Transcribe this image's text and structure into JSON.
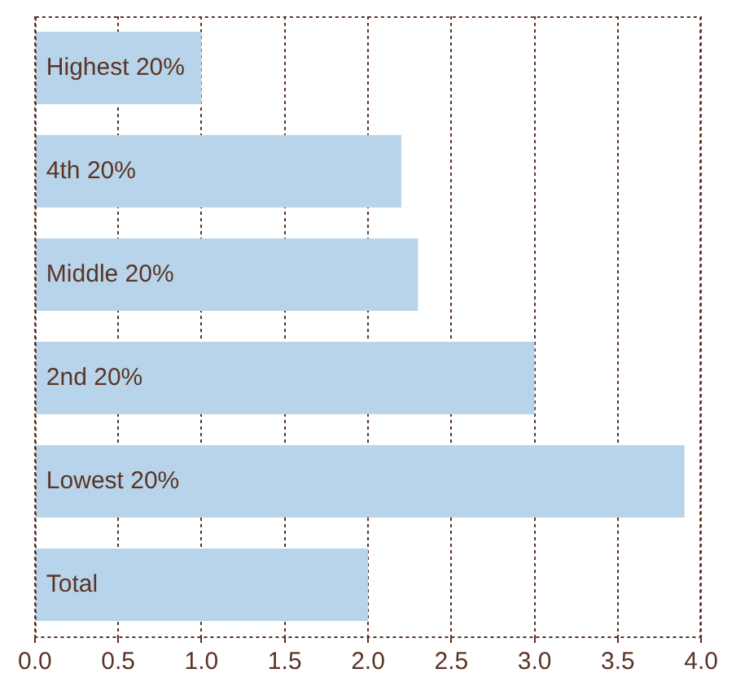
{
  "chart_data": {
    "type": "bar",
    "orientation": "horizontal",
    "categories": [
      "Highest 20%",
      "4th 20%",
      "Middle 20%",
      "2nd 20%",
      "Lowest 20%",
      "Total"
    ],
    "values": [
      1.0,
      2.2,
      2.3,
      3.0,
      3.9,
      2.0
    ],
    "color": "#b7d4ea",
    "xlim": [
      0,
      4
    ],
    "xticks": [
      {
        "value": 0,
        "label": "0.0"
      },
      {
        "value": 0.5,
        "label": "0.5"
      },
      {
        "value": 1,
        "label": "1.0"
      },
      {
        "value": 1.5,
        "label": "1.5"
      },
      {
        "value": 2,
        "label": "2.0"
      },
      {
        "value": 2.5,
        "label": "2.5"
      },
      {
        "value": 3,
        "label": "3.0"
      },
      {
        "value": 3.5,
        "label": "3.5"
      },
      {
        "value": 4,
        "label": "4.0"
      }
    ],
    "grid": "x",
    "legend": false
  }
}
